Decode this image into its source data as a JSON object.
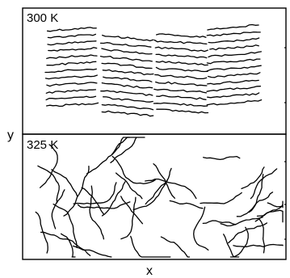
{
  "figure": {
    "axes": {
      "x_label": "x",
      "y_label": "y"
    },
    "panels": [
      {
        "label": "300 K",
        "state": "ordered"
      },
      {
        "label": "325 K",
        "state": "disordered"
      }
    ]
  }
}
